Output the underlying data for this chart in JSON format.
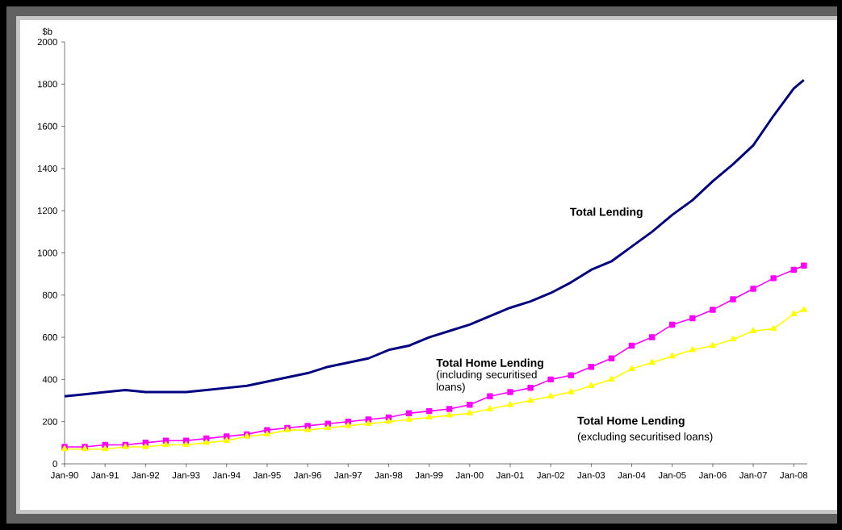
{
  "chart_data": {
    "type": "line",
    "ylabel": "$b",
    "x": [
      "1990-01",
      "1990-07",
      "1991-01",
      "1991-07",
      "1992-01",
      "1992-07",
      "1993-01",
      "1993-07",
      "1994-01",
      "1994-07",
      "1995-01",
      "1995-07",
      "1996-01",
      "1996-07",
      "1997-01",
      "1997-07",
      "1998-01",
      "1998-07",
      "1999-01",
      "1999-07",
      "2000-01",
      "2000-07",
      "2001-01",
      "2001-07",
      "2002-01",
      "2002-07",
      "2003-01",
      "2003-07",
      "2004-01",
      "2004-07",
      "2005-01",
      "2005-07",
      "2006-01",
      "2006-07",
      "2007-01",
      "2007-07",
      "2008-01",
      "2008-04"
    ],
    "series": [
      {
        "name": "Total Lending",
        "color": "#000080",
        "marker": "none",
        "values": [
          320,
          330,
          340,
          350,
          340,
          340,
          340,
          350,
          360,
          370,
          390,
          410,
          430,
          460,
          480,
          500,
          540,
          560,
          600,
          630,
          660,
          700,
          740,
          770,
          810,
          860,
          920,
          960,
          1030,
          1100,
          1180,
          1250,
          1340,
          1420,
          1510,
          1650,
          1780,
          1820
        ]
      },
      {
        "name": "Total Home Lending",
        "color": "#ff00ff",
        "marker": "square",
        "values": [
          80,
          80,
          90,
          90,
          100,
          110,
          110,
          120,
          130,
          140,
          160,
          170,
          180,
          190,
          200,
          210,
          220,
          240,
          250,
          260,
          280,
          320,
          340,
          360,
          400,
          420,
          460,
          500,
          560,
          600,
          660,
          690,
          730,
          780,
          830,
          880,
          920,
          940
        ]
      },
      {
        "name": "Total Home Lending",
        "color": "#ffff00",
        "marker": "triangle",
        "values": [
          70,
          70,
          70,
          80,
          80,
          90,
          90,
          100,
          110,
          130,
          140,
          160,
          160,
          170,
          180,
          190,
          200,
          210,
          220,
          230,
          240,
          260,
          280,
          300,
          320,
          340,
          370,
          400,
          450,
          480,
          510,
          540,
          560,
          590,
          630,
          640,
          710,
          730
        ]
      }
    ],
    "annotations": [
      "(including securitised loans)",
      "(excluding securitised loans)"
    ],
    "xlim": [
      "1990-01",
      "2008-05"
    ],
    "ylim": [
      0,
      2000
    ],
    "xticks": [
      {
        "value": "1990-01",
        "label": "Jan-90"
      },
      {
        "value": "1991-01",
        "label": "Jan-91"
      },
      {
        "value": "1992-01",
        "label": "Jan-92"
      },
      {
        "value": "1993-01",
        "label": "Jan-93"
      },
      {
        "value": "1994-01",
        "label": "Jan-94"
      },
      {
        "value": "1995-01",
        "label": "Jan-95"
      },
      {
        "value": "1996-01",
        "label": "Jan-96"
      },
      {
        "value": "1997-01",
        "label": "Jan-97"
      },
      {
        "value": "1998-01",
        "label": "Jan-98"
      },
      {
        "value": "1999-01",
        "label": "Jan-99"
      },
      {
        "value": "2000-01",
        "label": "Jan-00"
      },
      {
        "value": "2001-01",
        "label": "Jan-01"
      },
      {
        "value": "2002-01",
        "label": "Jan-02"
      },
      {
        "value": "2003-01",
        "label": "Jan-03"
      },
      {
        "value": "2004-01",
        "label": "Jan-04"
      },
      {
        "value": "2005-01",
        "label": "Jan-05"
      },
      {
        "value": "2006-01",
        "label": "Jan-06"
      },
      {
        "value": "2007-01",
        "label": "Jan-07"
      },
      {
        "value": "2008-01",
        "label": "Jan-08"
      }
    ],
    "yticks": [
      0,
      200,
      400,
      600,
      800,
      1000,
      1200,
      1400,
      1600,
      1800,
      2000
    ],
    "grid": false,
    "legend": false
  }
}
